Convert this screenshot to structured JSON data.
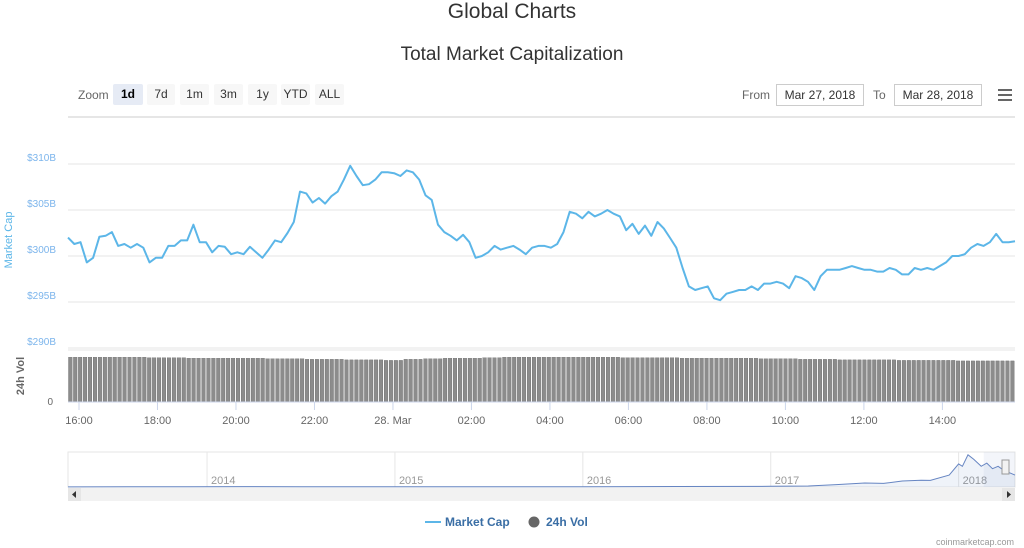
{
  "header": {
    "title": "Global Charts",
    "subtitle": "Total Market Capitalization"
  },
  "range_selector": {
    "label": "Zoom",
    "buttons": [
      "1d",
      "7d",
      "1m",
      "3m",
      "1y",
      "YTD",
      "ALL"
    ],
    "selected": "1d"
  },
  "date_range": {
    "from_label": "From",
    "from": "Mar 27, 2018",
    "to_label": "To",
    "to": "Mar 28, 2018"
  },
  "credit": "coinmarketcap.com",
  "chart_data": {
    "type": "line",
    "title": "Total Market Capitalization",
    "ylabel": "Market Cap",
    "ylabel2": "24h Vol",
    "y_ticks": [
      "$290B",
      "$295B",
      "$300B",
      "$305B",
      "$310B"
    ],
    "ylim": [
      290,
      315
    ],
    "y2_ticks": [
      "0"
    ],
    "x_ticks": [
      "16:00",
      "18:00",
      "20:00",
      "22:00",
      "28. Mar",
      "02:00",
      "04:00",
      "06:00",
      "08:00",
      "10:00",
      "12:00",
      "14:00"
    ],
    "x_range_hours": [
      15.72,
      39.85
    ],
    "series": [
      {
        "name": "Market Cap",
        "color": "#5cb6e8",
        "unit": "B USD",
        "values": [
          302.0,
          301.3,
          301.5,
          299.3,
          299.8,
          302.1,
          302.2,
          302.6,
          301.1,
          301.3,
          300.9,
          301.3,
          300.9,
          299.3,
          299.8,
          299.8,
          301.1,
          301.1,
          301.7,
          301.7,
          303.4,
          301.5,
          301.5,
          300.4,
          301.1,
          301.0,
          300.2,
          300.4,
          300.2,
          301.0,
          300.4,
          299.8,
          300.7,
          301.7,
          301.5,
          302.5,
          303.7,
          307.0,
          306.8,
          305.8,
          306.3,
          305.7,
          306.5,
          307.0,
          308.3,
          309.8,
          308.7,
          307.7,
          307.8,
          308.3,
          309.1,
          309.1,
          309.0,
          308.7,
          309.3,
          309.1,
          308.3,
          306.6,
          306.1,
          303.4,
          302.6,
          302.2,
          301.7,
          302.3,
          301.5,
          299.8,
          300.0,
          300.4,
          301.1,
          300.7,
          300.9,
          301.1,
          300.7,
          300.2,
          300.9,
          301.1,
          301.1,
          300.9,
          301.3,
          302.6,
          304.8,
          304.6,
          304.1,
          304.8,
          304.3,
          304.6,
          305.0,
          304.6,
          304.3,
          302.8,
          303.5,
          302.4,
          303.3,
          302.2,
          303.7,
          303.0,
          301.96,
          300.9,
          298.7,
          296.7,
          296.3,
          296.5,
          296.7,
          295.4,
          295.2,
          295.9,
          296.1,
          296.3,
          296.3,
          296.7,
          296.3,
          297.0,
          297.0,
          297.2,
          297.0,
          296.5,
          297.8,
          297.6,
          297.2,
          296.3,
          297.8,
          298.5,
          298.5,
          298.5,
          298.7,
          298.9,
          298.7,
          298.5,
          298.5,
          298.3,
          298.3,
          298.7,
          298.5,
          298.0,
          298.0,
          298.7,
          298.5,
          298.7,
          298.5,
          298.9,
          299.3,
          300.0,
          300.0,
          300.2,
          300.9,
          301.3,
          301.1,
          301.5,
          302.4,
          301.5,
          301.5,
          301.6
        ]
      },
      {
        "name": "24h Vol",
        "color": "#666666",
        "unit": "relative",
        "values": [
          0.86,
          0.86,
          0.86,
          0.86,
          0.85,
          0.85,
          0.84,
          0.84,
          0.84,
          0.84,
          0.83,
          0.83,
          0.82,
          0.82,
          0.81,
          0.81,
          0.8,
          0.82,
          0.83,
          0.84,
          0.84,
          0.85,
          0.86,
          0.86,
          0.86,
          0.86,
          0.86,
          0.86,
          0.85,
          0.85,
          0.85,
          0.84,
          0.84,
          0.84,
          0.84,
          0.83,
          0.83,
          0.82,
          0.82,
          0.81,
          0.81,
          0.81,
          0.8,
          0.8,
          0.8,
          0.79,
          0.79,
          0.79
        ]
      }
    ],
    "legend": {
      "position": "bottom",
      "items": [
        "Market Cap",
        "24h Vol"
      ]
    },
    "navigator": {
      "x_ticks": [
        "2014",
        "2015",
        "2016",
        "2017",
        "2018"
      ],
      "x_range_years": [
        2013.26,
        2018.3
      ],
      "ylim": [
        0,
        830
      ],
      "points": [
        [
          2013.26,
          2
        ],
        [
          2013.9,
          8
        ],
        [
          2014.2,
          10
        ],
        [
          2014.5,
          8
        ],
        [
          2015.0,
          5
        ],
        [
          2015.5,
          4
        ],
        [
          2016.0,
          7
        ],
        [
          2016.5,
          12
        ],
        [
          2017.0,
          18
        ],
        [
          2017.2,
          25
        ],
        [
          2017.35,
          60
        ],
        [
          2017.5,
          100
        ],
        [
          2017.6,
          90
        ],
        [
          2017.7,
          150
        ],
        [
          2017.8,
          170
        ],
        [
          2017.85,
          165
        ],
        [
          2017.95,
          300
        ],
        [
          2018.0,
          580
        ],
        [
          2018.02,
          520
        ],
        [
          2018.05,
          810
        ],
        [
          2018.08,
          700
        ],
        [
          2018.12,
          520
        ],
        [
          2018.15,
          600
        ],
        [
          2018.18,
          460
        ],
        [
          2018.21,
          520
        ],
        [
          2018.24,
          420
        ],
        [
          2018.3,
          300
        ]
      ]
    }
  }
}
